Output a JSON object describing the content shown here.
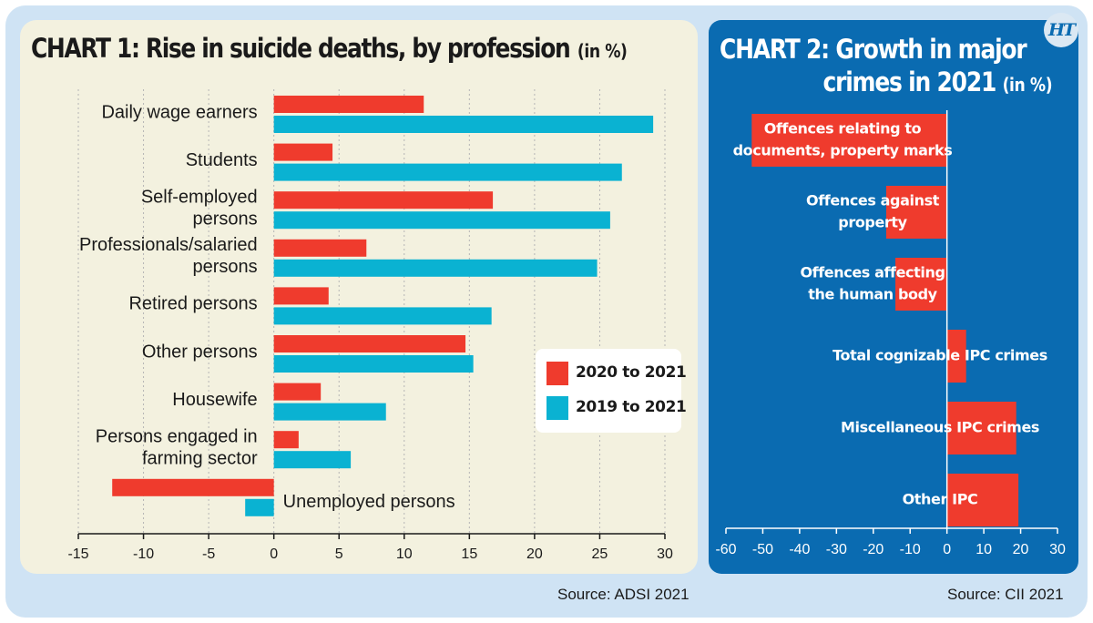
{
  "brand": {
    "logo_text": "HT"
  },
  "colors": {
    "red": "#ef3b2d",
    "cyan": "#0ab2d2",
    "chart2_bg": "#0a6bb1",
    "chart1_bg": "#f3f1df",
    "frame": "#cfe3f4"
  },
  "chart1": {
    "title": "CHART 1: Rise in suicide deaths, by profession",
    "unit": "(in %)",
    "source": "Source: ADSI 2021"
  },
  "chart2": {
    "title_line1": "CHART 2:  Growth in major",
    "title_line2": "crimes in 2021",
    "unit": "(in %)",
    "source": "Source: CII 2021"
  },
  "chart_data": [
    {
      "type": "bar",
      "orientation": "horizontal",
      "title": "CHART 1: Rise in suicide deaths, by profession (in %)",
      "categories": [
        [
          "Daily wage earners"
        ],
        [
          "Students"
        ],
        [
          "Self-employed",
          "persons"
        ],
        [
          "Professionals/salaried",
          "persons"
        ],
        [
          "Retired persons"
        ],
        [
          "Other persons"
        ],
        [
          "Housewife"
        ],
        [
          "Persons engaged in",
          "farming sector"
        ],
        [
          "Unemployed persons"
        ]
      ],
      "series": [
        {
          "name": "2020 to 2021",
          "color": "#ef3b2d",
          "values": [
            11.5,
            4.5,
            16.8,
            7.1,
            4.2,
            14.7,
            3.6,
            1.9,
            -12.4
          ]
        },
        {
          "name": "2019 to 2021",
          "color": "#0ab2d2",
          "values": [
            29.1,
            26.7,
            25.8,
            24.8,
            16.7,
            15.3,
            8.6,
            5.9,
            -2.2
          ]
        }
      ],
      "xlim": [
        -15,
        30
      ],
      "xticks": [
        "-15",
        "-10",
        "-5",
        "0",
        "5",
        "10",
        "15",
        "20",
        "25",
        "30"
      ],
      "legend": "bottom-right",
      "grid": true,
      "source": "Source: ADSI 2021"
    },
    {
      "type": "bar",
      "orientation": "horizontal",
      "title": "CHART 2: Growth in major crimes in 2021 (in %)",
      "categories": [
        [
          "Offences relating to",
          "documents, property marks"
        ],
        [
          "Offences against",
          "property"
        ],
        [
          "Offences affecting",
          "the human body"
        ],
        [
          "Total cognizable IPC crimes"
        ],
        [
          "Miscellaneous IPC crimes"
        ],
        [
          "Other IPC"
        ]
      ],
      "values": [
        -53,
        -16.5,
        -14,
        5.2,
        18.8,
        19.4
      ],
      "color": "#ef3b2d",
      "xlim": [
        -60,
        30
      ],
      "xticks": [
        "-60",
        "-50",
        "-40",
        "-30",
        "-20",
        "-10",
        "0",
        "10",
        "20",
        "30"
      ],
      "grid": false,
      "source": "Source: CII 2021"
    }
  ]
}
